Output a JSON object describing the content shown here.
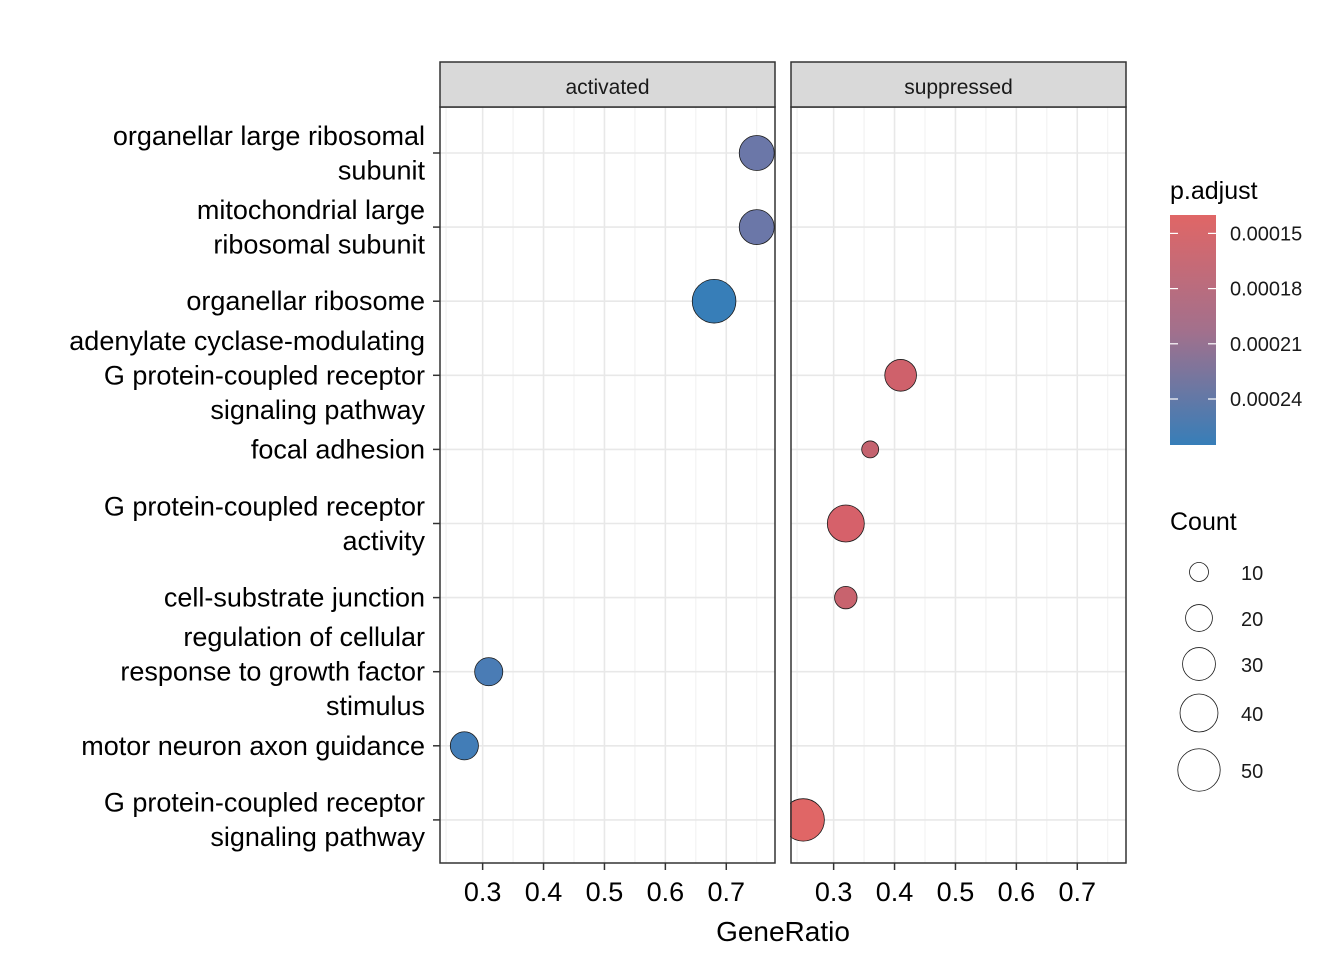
{
  "chart_data": {
    "type": "scatter",
    "xlabel": "GeneRatio",
    "ylabel": "",
    "xlim": [
      0.23,
      0.78
    ],
    "x_ticks": [
      0.3,
      0.4,
      0.5,
      0.6,
      0.7
    ],
    "x_tick_labels": [
      "0.3",
      "0.4",
      "0.5",
      "0.6",
      "0.7"
    ],
    "grid": true,
    "facets": [
      "activated",
      "suppressed"
    ],
    "categories": [
      [
        "organellar large ribosomal",
        "subunit"
      ],
      [
        "mitochondrial large",
        "ribosomal subunit"
      ],
      [
        "organellar ribosome"
      ],
      [
        "adenylate cyclase-modulating",
        "G protein-coupled receptor",
        "signaling pathway"
      ],
      [
        "focal adhesion"
      ],
      [
        "G protein-coupled receptor",
        "activity"
      ],
      [
        "cell-substrate junction"
      ],
      [
        "regulation of cellular",
        "response to growth factor",
        "stimulus"
      ],
      [
        "motor neuron axon guidance"
      ],
      [
        "G protein-coupled receptor",
        "signaling pathway"
      ]
    ],
    "points": [
      {
        "facet": "activated",
        "category": 0,
        "x": 0.75,
        "count": 34,
        "p_adjust": 0.000235,
        "color": "#6b77a8"
      },
      {
        "facet": "activated",
        "category": 1,
        "x": 0.75,
        "count": 34,
        "p_adjust": 0.000235,
        "color": "#6b77a8"
      },
      {
        "facet": "activated",
        "category": 2,
        "x": 0.68,
        "count": 53,
        "p_adjust": 0.000265,
        "color": "#377eb8"
      },
      {
        "facet": "activated",
        "category": 7,
        "x": 0.31,
        "count": 22,
        "p_adjust": 0.000255,
        "color": "#4a7cb5"
      },
      {
        "facet": "activated",
        "category": 8,
        "x": 0.27,
        "count": 22,
        "p_adjust": 0.000258,
        "color": "#427db7"
      },
      {
        "facet": "suppressed",
        "category": 3,
        "x": 0.41,
        "count": 28,
        "p_adjust": 0.000165,
        "color": "#cf616b"
      },
      {
        "facet": "suppressed",
        "category": 4,
        "x": 0.36,
        "count": 8,
        "p_adjust": 0.000175,
        "color": "#c4636f"
      },
      {
        "facet": "suppressed",
        "category": 5,
        "x": 0.32,
        "count": 38,
        "p_adjust": 0.00016,
        "color": "#d6616a"
      },
      {
        "facet": "suppressed",
        "category": 6,
        "x": 0.32,
        "count": 14,
        "p_adjust": 0.000172,
        "color": "#c8636e"
      },
      {
        "facet": "suppressed",
        "category": 9,
        "x": 0.25,
        "count": 50,
        "p_adjust": 0.00015,
        "color": "#e06666"
      }
    ],
    "legend_color": {
      "title": "p.adjust",
      "labels": [
        "0.00015",
        "0.00018",
        "0.00021",
        "0.00024"
      ],
      "values": [
        0.00015,
        0.00018,
        0.00021,
        0.00024
      ],
      "range": [
        0.00014,
        0.000265
      ],
      "low_color": "#e06666",
      "high_color": "#377eb8"
    },
    "legend_size": {
      "title": "Count",
      "labels": [
        "10",
        "20",
        "30",
        "40",
        "50"
      ],
      "values": [
        10,
        20,
        30,
        40,
        50
      ]
    },
    "legend_placement": "right"
  }
}
